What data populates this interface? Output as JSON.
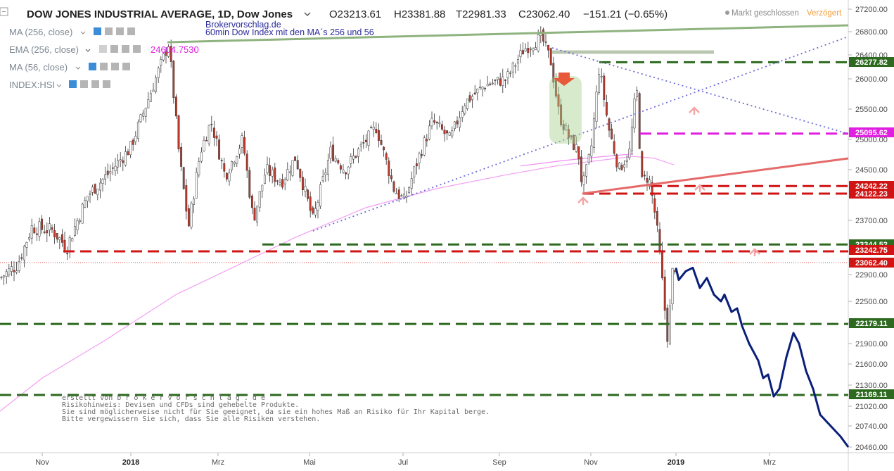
{
  "header": {
    "symbol_title": "DOW JONES INDUSTRIAL AVERAGE, 1D, Dow Jones",
    "open": "O23213.61",
    "high": "H23381.88",
    "low": "T22981.33",
    "close": "C23062.40",
    "change": "−151.21 (−0.65%)",
    "market_status": "Markt geschlossen",
    "delay": "Verzögert",
    "collapse_icon": "minus-square-icon",
    "dropdown_icon": "chevron-down-icon"
  },
  "watermark": {
    "line1": "Brokervorschlag.de",
    "line2": "60min Dow Index mit den MA´s 256 und 56"
  },
  "indicators": [
    {
      "label": "MA (256, close)",
      "value": ""
    },
    {
      "label": "EMA (256, close)",
      "value": "24604.7530"
    },
    {
      "label": "MA (56, close)",
      "value": ""
    },
    {
      "label": "INDEX:HSI",
      "value": ""
    }
  ],
  "disclaimer": {
    "line1": "erstellt von b r o k e r v o r s c h l a g . d e",
    "line2": "Risikohinweis: Devisen und CFDs sind gehebelte Produkte.",
    "line3": "Sie sind möglicherweise nicht für Sie geeignet, da sie ein hohes Maß an Risiko für Ihr Kapital berge.",
    "line4": "Bitte vergewissern Sie sich, dass Sie alle Risiken verstehen."
  },
  "chart_data": {
    "type": "candlestick",
    "x_axis_labels": [
      "Nov",
      "2018",
      "Mrz",
      "Mai",
      "Jul",
      "Sep",
      "Nov",
      "2019",
      "Mrz"
    ],
    "y_axis_ticks": [
      27200,
      26800,
      26400,
      26000,
      25500,
      25000,
      24500,
      23700,
      22900,
      22500,
      22200,
      21900,
      21600,
      21300,
      21020,
      20740,
      20460
    ],
    "price_tags": [
      {
        "value": "26277.82",
        "color": "#2d6a1f"
      },
      {
        "value": "25095.62",
        "color": "#e01fe0"
      },
      {
        "value": "24242.22",
        "color": "#d01414"
      },
      {
        "value": "24122.23",
        "color": "#d01414"
      },
      {
        "value": "23344.52",
        "color": "#2d6a1f"
      },
      {
        "value": "23242.75",
        "color": "#d01414"
      },
      {
        "value": "23062.40",
        "color": "#d01414"
      },
      {
        "value": "22179.11",
        "color": "#2d6a1f"
      },
      {
        "value": "21169.11",
        "color": "#2d6a1f"
      }
    ],
    "last_price": 23062.4,
    "horizontal_levels": [
      {
        "value": 26277.82,
        "style": "dashed",
        "color": "#2d6a1f"
      },
      {
        "value": 25095.62,
        "style": "dashed",
        "color": "#e01fe0"
      },
      {
        "value": 24242.22,
        "style": "dashed",
        "color": "#d01414"
      },
      {
        "value": 24122.23,
        "style": "dashed",
        "color": "#d01414"
      },
      {
        "value": 23344.52,
        "style": "dashed",
        "color": "#2d6a1f"
      },
      {
        "value": 23242.75,
        "style": "dashed",
        "color": "#d01414"
      },
      {
        "value": 22179.11,
        "style": "dashed",
        "color": "#2d6a1f"
      },
      {
        "value": 21169.11,
        "style": "dashed",
        "color": "#2d6a1f"
      }
    ],
    "colors": {
      "up": "#2f8a2f",
      "down": "#c0392b",
      "ma256": "#f29ff2",
      "ma56": "#f08cf0",
      "projection": "#0a1f7a",
      "trendline": "#7f9fcf"
    }
  }
}
